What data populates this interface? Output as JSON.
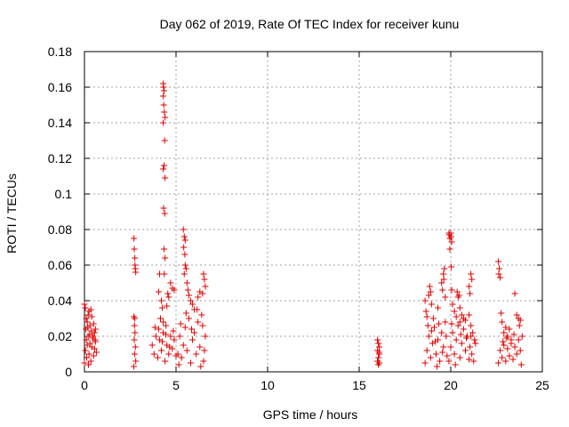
{
  "chart_data": {
    "type": "scatter",
    "title": "Day 062 of 2019, Rate Of TEC Index for receiver kunu",
    "xlabel": "GPS time / hours",
    "ylabel": "ROTI / TECUs",
    "xlim": [
      0,
      25
    ],
    "ylim": [
      0,
      0.18
    ],
    "xticks": [
      0,
      5,
      10,
      15,
      20,
      25
    ],
    "xtick_labels": [
      "0",
      "5",
      "10",
      "15",
      "20",
      "25"
    ],
    "yticks": [
      0,
      0.02,
      0.04,
      0.06,
      0.08,
      0.1,
      0.12,
      0.14,
      0.16,
      0.18
    ],
    "ytick_labels": [
      "0",
      "0.02",
      "0.04",
      "0.06",
      "0.08",
      "0.1",
      "0.12",
      "0.14",
      "0.16",
      "0.18"
    ],
    "grid": true,
    "marker": "+",
    "color": "#e00000",
    "series": [
      {
        "name": "ROTI",
        "points": [
          [
            0.0,
            0.038
          ],
          [
            0.05,
            0.036
          ],
          [
            0.1,
            0.03
          ],
          [
            0.15,
            0.028
          ],
          [
            0.2,
            0.032
          ],
          [
            0.25,
            0.034
          ],
          [
            0.3,
            0.026
          ],
          [
            0.35,
            0.035
          ],
          [
            0.4,
            0.031
          ],
          [
            0.5,
            0.027
          ],
          [
            0.55,
            0.022
          ],
          [
            0.6,
            0.024
          ],
          [
            0.0,
            0.005
          ],
          [
            0.05,
            0.012
          ],
          [
            0.1,
            0.018
          ],
          [
            0.12,
            0.008
          ],
          [
            0.15,
            0.015
          ],
          [
            0.2,
            0.02
          ],
          [
            0.22,
            0.004
          ],
          [
            0.25,
            0.01
          ],
          [
            0.3,
            0.016
          ],
          [
            0.35,
            0.006
          ],
          [
            0.4,
            0.014
          ],
          [
            0.45,
            0.019
          ],
          [
            0.5,
            0.009
          ],
          [
            0.55,
            0.013
          ],
          [
            0.6,
            0.017
          ],
          [
            0.65,
            0.011
          ],
          [
            0.08,
            0.024
          ],
          [
            0.18,
            0.025
          ],
          [
            0.28,
            0.021
          ],
          [
            0.38,
            0.023
          ],
          [
            0.48,
            0.02
          ],
          [
            0.58,
            0.018
          ],
          [
            2.7,
            0.075
          ],
          [
            2.72,
            0.069
          ],
          [
            2.75,
            0.064
          ],
          [
            2.78,
            0.058
          ],
          [
            2.8,
            0.056
          ],
          [
            2.76,
            0.06
          ],
          [
            2.7,
            0.031
          ],
          [
            2.75,
            0.03
          ],
          [
            2.72,
            0.018
          ],
          [
            2.78,
            0.014
          ],
          [
            2.74,
            0.01
          ],
          [
            2.8,
            0.006
          ],
          [
            2.7,
            0.003
          ],
          [
            2.76,
            0.022
          ],
          [
            2.73,
            0.026
          ],
          [
            4.3,
            0.162
          ],
          [
            4.32,
            0.16
          ],
          [
            4.35,
            0.158
          ],
          [
            4.3,
            0.155
          ],
          [
            4.33,
            0.15
          ],
          [
            4.36,
            0.146
          ],
          [
            4.4,
            0.143
          ],
          [
            4.3,
            0.14
          ],
          [
            4.38,
            0.13
          ],
          [
            4.35,
            0.116
          ],
          [
            4.3,
            0.114
          ],
          [
            4.4,
            0.109
          ],
          [
            4.32,
            0.092
          ],
          [
            4.38,
            0.089
          ],
          [
            4.35,
            0.069
          ],
          [
            4.4,
            0.064
          ],
          [
            4.36,
            0.055
          ],
          [
            4.1,
            0.055
          ],
          [
            4.05,
            0.045
          ],
          [
            4.2,
            0.04
          ],
          [
            4.25,
            0.036
          ],
          [
            4.5,
            0.037
          ],
          [
            4.55,
            0.044
          ],
          [
            4.6,
            0.042
          ],
          [
            4.7,
            0.05
          ],
          [
            4.8,
            0.047
          ],
          [
            4.9,
            0.046
          ],
          [
            4.15,
            0.03
          ],
          [
            4.3,
            0.028
          ],
          [
            4.45,
            0.026
          ],
          [
            3.7,
            0.015
          ],
          [
            3.8,
            0.01
          ],
          [
            3.9,
            0.02
          ],
          [
            4.0,
            0.008
          ],
          [
            4.1,
            0.018
          ],
          [
            4.2,
            0.012
          ],
          [
            4.3,
            0.022
          ],
          [
            4.4,
            0.006
          ],
          [
            4.5,
            0.015
          ],
          [
            4.6,
            0.01
          ],
          [
            4.7,
            0.02
          ],
          [
            4.8,
            0.013
          ],
          [
            4.9,
            0.018
          ],
          [
            5.0,
            0.009
          ],
          [
            3.85,
            0.025
          ],
          [
            4.05,
            0.024
          ],
          [
            4.25,
            0.017
          ],
          [
            4.45,
            0.021
          ],
          [
            4.65,
            0.014
          ],
          [
            4.85,
            0.023
          ],
          [
            5.4,
            0.08
          ],
          [
            5.45,
            0.076
          ],
          [
            5.5,
            0.074
          ],
          [
            5.42,
            0.07
          ],
          [
            5.48,
            0.066
          ],
          [
            5.5,
            0.06
          ],
          [
            5.55,
            0.058
          ],
          [
            5.45,
            0.055
          ],
          [
            5.6,
            0.05
          ],
          [
            5.65,
            0.046
          ],
          [
            5.7,
            0.043
          ],
          [
            5.8,
            0.04
          ],
          [
            5.9,
            0.038
          ],
          [
            6.0,
            0.035
          ],
          [
            6.2,
            0.042
          ],
          [
            6.3,
            0.045
          ],
          [
            6.5,
            0.055
          ],
          [
            6.55,
            0.052
          ],
          [
            6.6,
            0.048
          ],
          [
            6.45,
            0.044
          ],
          [
            5.1,
            0.01
          ],
          [
            5.2,
            0.02
          ],
          [
            5.3,
            0.008
          ],
          [
            5.4,
            0.015
          ],
          [
            5.5,
            0.025
          ],
          [
            5.6,
            0.012
          ],
          [
            5.7,
            0.03
          ],
          [
            5.8,
            0.005
          ],
          [
            5.9,
            0.018
          ],
          [
            6.0,
            0.022
          ],
          [
            6.1,
            0.01
          ],
          [
            6.2,
            0.028
          ],
          [
            6.3,
            0.014
          ],
          [
            6.4,
            0.032
          ],
          [
            6.5,
            0.006
          ],
          [
            6.6,
            0.02
          ],
          [
            5.25,
            0.027
          ],
          [
            5.55,
            0.033
          ],
          [
            5.85,
            0.024
          ],
          [
            6.15,
            0.035
          ],
          [
            6.45,
            0.026
          ],
          [
            6.55,
            0.012
          ],
          [
            5.15,
            0.004
          ],
          [
            6.35,
            0.003
          ],
          [
            16.0,
            0.018
          ],
          [
            16.05,
            0.016
          ],
          [
            16.1,
            0.014
          ],
          [
            16.0,
            0.012
          ],
          [
            16.1,
            0.01
          ],
          [
            16.05,
            0.008
          ],
          [
            16.0,
            0.006
          ],
          [
            16.1,
            0.005
          ],
          [
            16.05,
            0.004
          ],
          [
            16.08,
            0.011
          ],
          [
            18.6,
            0.04
          ],
          [
            18.65,
            0.034
          ],
          [
            18.7,
            0.031
          ],
          [
            18.8,
            0.043
          ],
          [
            18.85,
            0.048
          ],
          [
            18.9,
            0.045
          ],
          [
            18.95,
            0.038
          ],
          [
            19.05,
            0.03
          ],
          [
            19.3,
            0.036
          ],
          [
            19.5,
            0.05
          ],
          [
            19.55,
            0.046
          ],
          [
            19.6,
            0.055
          ],
          [
            19.62,
            0.052
          ],
          [
            19.65,
            0.058
          ],
          [
            19.7,
            0.042
          ],
          [
            18.6,
            0.005
          ],
          [
            18.7,
            0.012
          ],
          [
            18.8,
            0.02
          ],
          [
            18.9,
            0.008
          ],
          [
            19.0,
            0.016
          ],
          [
            19.1,
            0.025
          ],
          [
            19.2,
            0.01
          ],
          [
            19.3,
            0.018
          ],
          [
            19.4,
            0.006
          ],
          [
            19.5,
            0.022
          ],
          [
            19.6,
            0.014
          ],
          [
            19.7,
            0.028
          ],
          [
            19.8,
            0.009
          ],
          [
            18.75,
            0.026
          ],
          [
            18.95,
            0.023
          ],
          [
            19.15,
            0.017
          ],
          [
            19.35,
            0.027
          ],
          [
            19.55,
            0.011
          ],
          [
            19.75,
            0.02
          ],
          [
            19.25,
            0.003
          ],
          [
            19.9,
            0.078
          ],
          [
            19.92,
            0.077
          ],
          [
            19.95,
            0.075
          ],
          [
            20.0,
            0.078
          ],
          [
            20.02,
            0.076
          ],
          [
            20.05,
            0.073
          ],
          [
            19.95,
            0.069
          ],
          [
            20.03,
            0.059
          ],
          [
            20.05,
            0.046
          ],
          [
            20.1,
            0.038
          ],
          [
            20.2,
            0.034
          ],
          [
            20.3,
            0.031
          ],
          [
            20.35,
            0.045
          ],
          [
            20.4,
            0.042
          ],
          [
            20.5,
            0.036
          ],
          [
            20.6,
            0.032
          ],
          [
            20.7,
            0.03
          ],
          [
            20.8,
            0.029
          ],
          [
            20.5,
            0.028
          ],
          [
            20.45,
            0.043
          ],
          [
            19.9,
            0.006
          ],
          [
            20.0,
            0.014
          ],
          [
            20.1,
            0.022
          ],
          [
            20.2,
            0.01
          ],
          [
            20.3,
            0.018
          ],
          [
            20.4,
            0.026
          ],
          [
            20.5,
            0.008
          ],
          [
            20.6,
            0.016
          ],
          [
            20.7,
            0.024
          ],
          [
            20.8,
            0.012
          ],
          [
            20.9,
            0.02
          ],
          [
            21.0,
            0.007
          ],
          [
            20.05,
            0.027
          ],
          [
            20.25,
            0.004
          ],
          [
            20.55,
            0.021
          ],
          [
            20.85,
            0.019
          ],
          [
            21.0,
            0.048
          ],
          [
            21.05,
            0.044
          ],
          [
            21.1,
            0.055
          ],
          [
            21.15,
            0.052
          ],
          [
            21.0,
            0.032
          ],
          [
            21.1,
            0.026
          ],
          [
            21.2,
            0.022
          ],
          [
            21.3,
            0.018
          ],
          [
            21.05,
            0.014
          ],
          [
            21.15,
            0.01
          ],
          [
            21.25,
            0.006
          ],
          [
            21.35,
            0.016
          ],
          [
            21.1,
            0.02
          ],
          [
            22.6,
            0.062
          ],
          [
            22.65,
            0.058
          ],
          [
            22.62,
            0.055
          ],
          [
            22.7,
            0.053
          ],
          [
            22.75,
            0.033
          ],
          [
            22.8,
            0.028
          ],
          [
            22.9,
            0.022
          ],
          [
            23.0,
            0.025
          ],
          [
            23.1,
            0.02
          ],
          [
            23.2,
            0.024
          ],
          [
            23.3,
            0.018
          ],
          [
            23.5,
            0.044
          ],
          [
            23.6,
            0.032
          ],
          [
            23.7,
            0.03
          ],
          [
            23.75,
            0.026
          ],
          [
            23.8,
            0.029
          ],
          [
            22.6,
            0.005
          ],
          [
            22.7,
            0.012
          ],
          [
            22.8,
            0.008
          ],
          [
            22.9,
            0.015
          ],
          [
            23.0,
            0.006
          ],
          [
            23.1,
            0.013
          ],
          [
            23.2,
            0.009
          ],
          [
            23.3,
            0.016
          ],
          [
            23.4,
            0.007
          ],
          [
            23.5,
            0.014
          ],
          [
            23.6,
            0.01
          ],
          [
            23.7,
            0.018
          ],
          [
            23.8,
            0.012
          ],
          [
            23.9,
            0.02
          ],
          [
            23.85,
            0.004
          ],
          [
            23.45,
            0.021
          ],
          [
            23.05,
            0.019
          ],
          [
            22.85,
            0.017
          ]
        ]
      }
    ]
  }
}
